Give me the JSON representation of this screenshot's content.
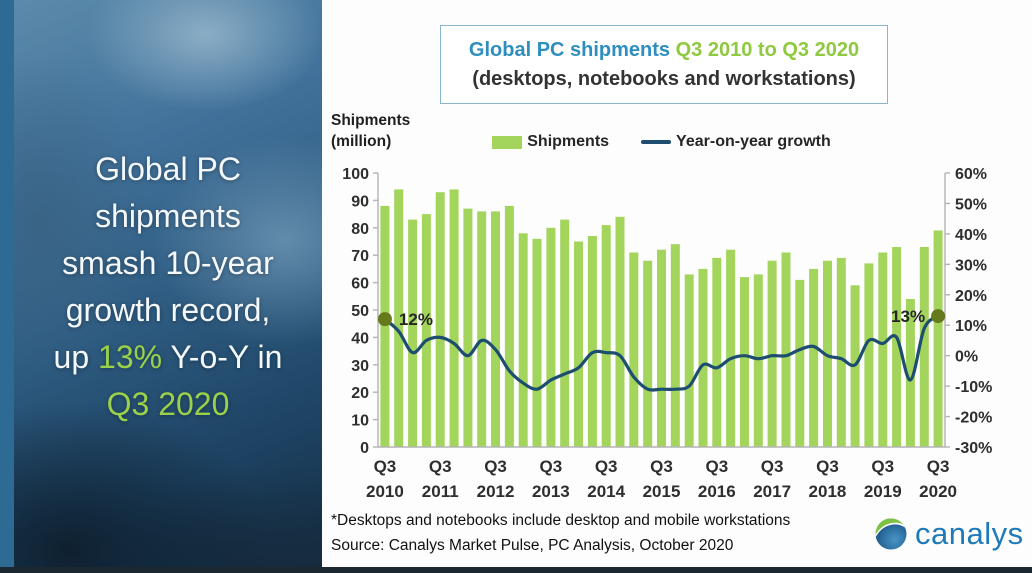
{
  "sidebar": {
    "headline": {
      "line1": "Global PC",
      "line2": "shipments",
      "line3": "smash 10-year",
      "line4": "growth record,",
      "line5_pre": "up ",
      "line5_highlight": "13%",
      "line5_post": " Y-o-Y in",
      "line6": "Q3 2020"
    }
  },
  "header": {
    "title_main": "Global PC shipments",
    "title_range": "Q3 2010 to Q3 2020",
    "title_sub": "(desktops, notebooks and workstations)"
  },
  "axis_label": {
    "line1": "Shipments",
    "line2": "(million)"
  },
  "legend": {
    "shipments_label": "Shipments",
    "growth_label": "Year-on-year growth"
  },
  "footnotes": {
    "note": "*Desktops and notebooks include desktop and mobile workstations",
    "source": "Source: Canalys Market Pulse, PC Analysis, October 2020"
  },
  "logo": {
    "text": "canalys"
  },
  "colors": {
    "bar": "#a3d55d",
    "line": "#1d4d6f",
    "dot": "#66791d",
    "axis": "#b3b3b3",
    "title_blue": "#2e8fbf",
    "title_green": "#8fc93f",
    "highlight_green": "#9ad14b",
    "logo_blue": "#1e7ab8",
    "logo_green": "#7dc242"
  },
  "chart_data": {
    "type": "bar+line combo",
    "title": "Global PC shipments Q3 2010 to Q3 2020 (desktops, notebooks and workstations)",
    "categories": [
      "Q3 2010",
      "Q4 2010",
      "Q1 2011",
      "Q2 2011",
      "Q3 2011",
      "Q4 2011",
      "Q1 2012",
      "Q2 2012",
      "Q3 2012",
      "Q4 2012",
      "Q1 2013",
      "Q2 2013",
      "Q3 2013",
      "Q4 2013",
      "Q1 2014",
      "Q2 2014",
      "Q3 2014",
      "Q4 2014",
      "Q1 2015",
      "Q2 2015",
      "Q3 2015",
      "Q4 2015",
      "Q1 2016",
      "Q2 2016",
      "Q3 2016",
      "Q4 2016",
      "Q1 2017",
      "Q2 2017",
      "Q3 2017",
      "Q4 2017",
      "Q1 2018",
      "Q2 2018",
      "Q3 2018",
      "Q4 2018",
      "Q1 2019",
      "Q2 2019",
      "Q3 2019",
      "Q4 2019",
      "Q1 2020",
      "Q2 2020",
      "Q3 2020"
    ],
    "series": [
      {
        "name": "Shipments",
        "type": "bar",
        "unit": "million",
        "axis": "left",
        "values": [
          88,
          94,
          83,
          85,
          93,
          94,
          87,
          86,
          86,
          88,
          78,
          76,
          80,
          83,
          75,
          77,
          81,
          84,
          71,
          68,
          72,
          74,
          63,
          65,
          69,
          72,
          62,
          63,
          68,
          71,
          61,
          65,
          68,
          69,
          59,
          67,
          71,
          73,
          54,
          73,
          79
        ]
      },
      {
        "name": "Year-on-year growth",
        "type": "line",
        "unit": "%",
        "axis": "right",
        "values": [
          12,
          8,
          1,
          5,
          6,
          4,
          0,
          5,
          2,
          -5,
          -9,
          -11,
          -8,
          -6,
          -4,
          1,
          1,
          0,
          -7,
          -11,
          -11,
          -11,
          -10,
          -3,
          -4,
          -1,
          0,
          -1,
          0,
          0,
          2,
          3,
          0,
          -1,
          -3,
          5,
          4,
          6,
          -8,
          9,
          13
        ]
      }
    ],
    "y_left": {
      "label": "Shipments (million)",
      "range": [
        0,
        100
      ],
      "ticks": [
        100,
        90,
        80,
        70,
        60,
        50,
        40,
        30,
        20,
        10,
        0
      ]
    },
    "y_right": {
      "label": "Year-on-year growth",
      "range_pct": [
        -30,
        60
      ],
      "ticks": [
        "60%",
        "50%",
        "40%",
        "30%",
        "20%",
        "10%",
        "0%",
        "-10%",
        "-20%",
        "-30%"
      ]
    },
    "x_axis_labels": [
      "Q3 2010",
      "Q3 2011",
      "Q3 2012",
      "Q3 2013",
      "Q3 2014",
      "Q3 2015",
      "Q3 2016",
      "Q3 2017",
      "Q3 2018",
      "Q3 2019",
      "Q3 2020"
    ],
    "annotations": {
      "start_label": "12%",
      "end_label": "13%"
    },
    "grid": false,
    "legend_position": "top"
  }
}
